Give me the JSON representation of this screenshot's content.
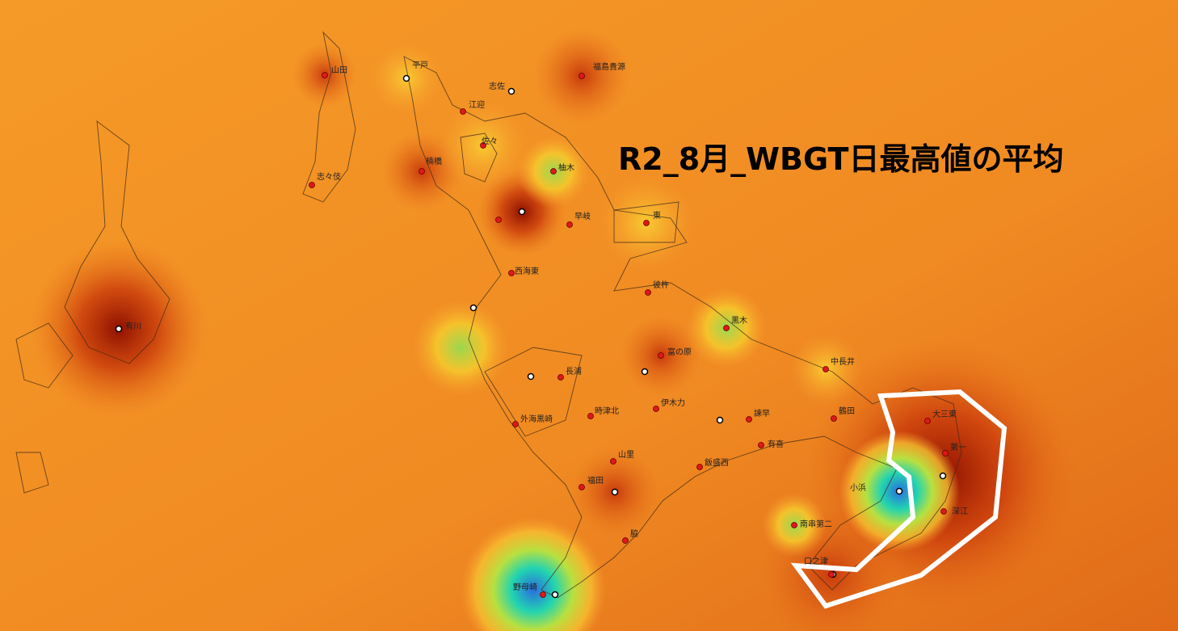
{
  "title": "R2_8月_WBGT日最高値の平均",
  "stations": [
    {
      "label": "山田"
    },
    {
      "label": "平戸"
    },
    {
      "label": "志佐"
    },
    {
      "label": "福島貴源"
    },
    {
      "label": "江迎"
    },
    {
      "label": "佐々"
    },
    {
      "label": "志々伎"
    },
    {
      "label": "楠橋"
    },
    {
      "label": "柚木"
    },
    {
      "label": "早岐"
    },
    {
      "label": "東"
    },
    {
      "label": "西海東"
    },
    {
      "label": "彼杵"
    },
    {
      "label": "有川"
    },
    {
      "label": "黒木"
    },
    {
      "label": "富の原"
    },
    {
      "label": "中長井"
    },
    {
      "label": "長浦"
    },
    {
      "label": "伊木力"
    },
    {
      "label": "時津北"
    },
    {
      "label": "諫早"
    },
    {
      "label": "鶴田"
    },
    {
      "label": "外海黒崎"
    },
    {
      "label": "大三東"
    },
    {
      "label": "有喜"
    },
    {
      "label": "第一"
    },
    {
      "label": "山里"
    },
    {
      "label": "飯盛西"
    },
    {
      "label": "福田"
    },
    {
      "label": "小浜"
    },
    {
      "label": "深江"
    },
    {
      "label": "南串第二"
    },
    {
      "label": "脇"
    },
    {
      "label": "口之津"
    },
    {
      "label": "野母崎"
    }
  ]
}
